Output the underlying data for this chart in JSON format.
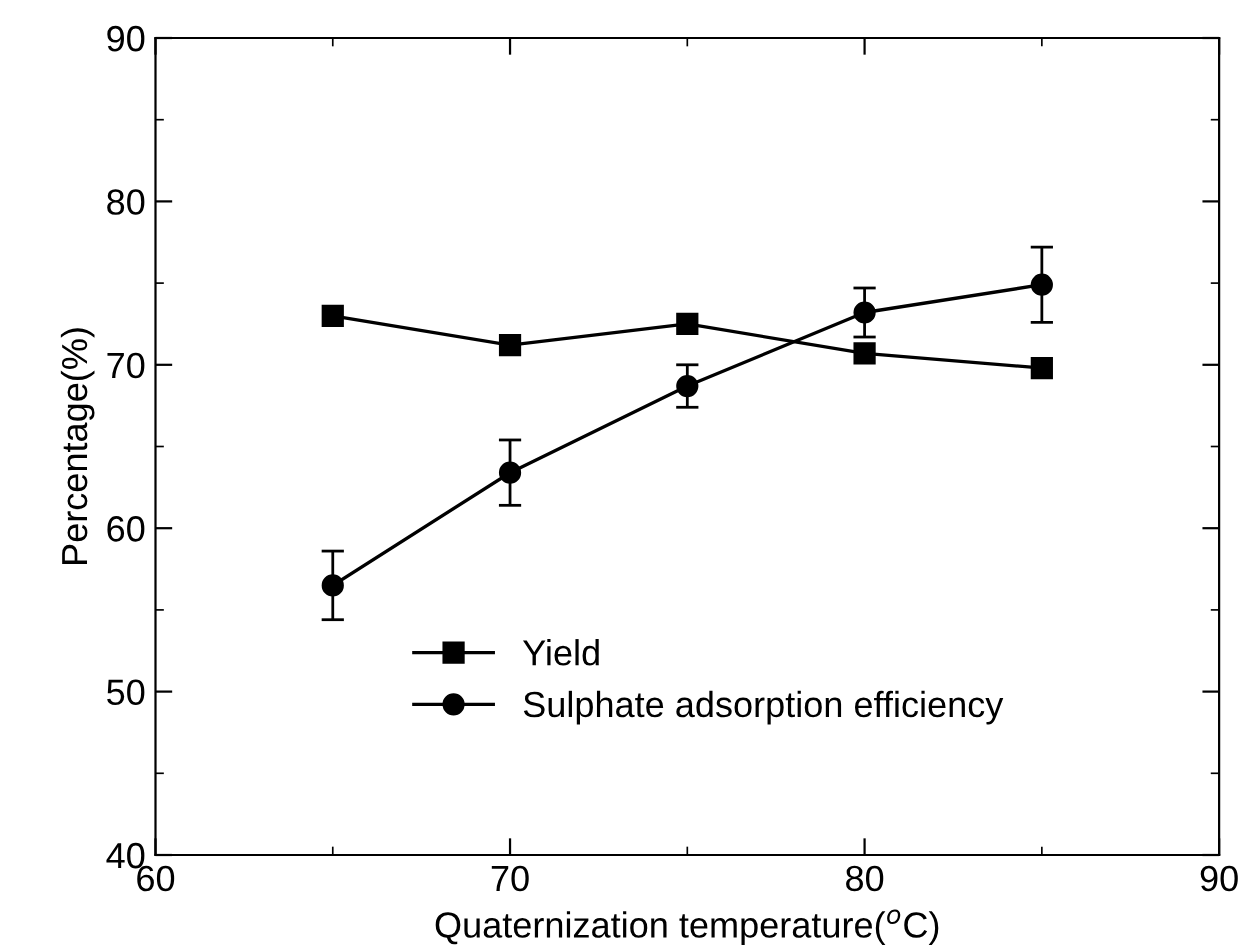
{
  "chart_data": {
    "type": "line",
    "xlabel": "Quaternization temperature($^{o}$C)",
    "ylabel": "Percentage(%)",
    "x": [
      65,
      70,
      75,
      80,
      85
    ],
    "series": [
      {
        "name": "Yield",
        "color": "#000000",
        "marker": "square",
        "values": [
          73.0,
          71.2,
          72.5,
          70.7,
          69.8
        ]
      },
      {
        "name": "Sulphate adsorption efficiency",
        "color": "#000000",
        "marker": "circle",
        "values": [
          56.5,
          63.4,
          68.7,
          73.2,
          74.9
        ],
        "errors": [
          2.1,
          2.0,
          1.3,
          1.5,
          2.3
        ]
      }
    ],
    "xlim": [
      60,
      90
    ],
    "xticks": [
      60,
      70,
      80,
      90
    ],
    "ylim": [
      40,
      90
    ],
    "yticks": [
      40,
      50,
      60,
      70,
      80,
      90
    ],
    "grid": false,
    "legend": "bottom",
    "line_style": "solid"
  }
}
